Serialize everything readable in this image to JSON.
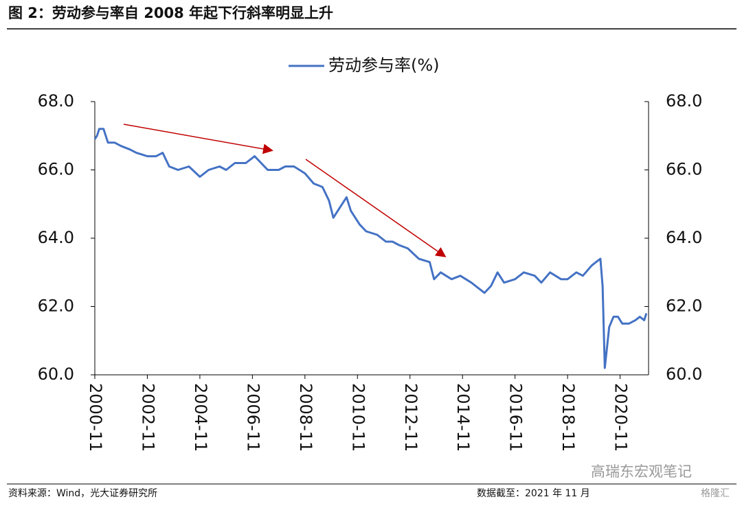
{
  "header": {
    "title": "图 2：劳动参与率自 2008 年起下行斜率明显上升"
  },
  "chart_data": {
    "type": "line",
    "x": [
      "2000-11",
      "2000-12",
      "2001-01",
      "2001-03",
      "2001-05",
      "2001-08",
      "2001-11",
      "2002-03",
      "2002-06",
      "2002-11",
      "2003-03",
      "2003-06",
      "2003-09",
      "2004-01",
      "2004-06",
      "2004-11",
      "2005-03",
      "2005-08",
      "2005-11",
      "2006-03",
      "2006-08",
      "2006-12",
      "2007-03",
      "2007-06",
      "2007-11",
      "2008-02",
      "2008-06",
      "2008-11",
      "2009-03",
      "2009-07",
      "2009-10",
      "2009-12",
      "2010-03",
      "2010-06",
      "2010-08",
      "2010-12",
      "2011-03",
      "2011-08",
      "2011-12",
      "2012-03",
      "2012-06",
      "2012-10",
      "2013-03",
      "2013-08",
      "2013-10",
      "2014-01",
      "2014-06",
      "2014-10",
      "2015-03",
      "2015-09",
      "2015-12",
      "2016-03",
      "2016-06",
      "2016-11",
      "2017-03",
      "2017-08",
      "2017-11",
      "2018-03",
      "2018-08",
      "2018-11",
      "2019-03",
      "2019-06",
      "2019-10",
      "2019-12",
      "2020-02",
      "2020-03",
      "2020-04",
      "2020-06",
      "2020-08",
      "2020-10",
      "2020-12",
      "2021-03",
      "2021-06",
      "2021-08",
      "2021-10",
      "2021-11"
    ],
    "series": [
      {
        "name": "劳动参与率(%)",
        "color": "#4472c4",
        "values": [
          66.9,
          67.0,
          67.2,
          67.2,
          66.8,
          66.8,
          66.7,
          66.6,
          66.5,
          66.4,
          66.4,
          66.5,
          66.1,
          66.0,
          66.1,
          65.8,
          66.0,
          66.1,
          66.0,
          66.2,
          66.2,
          66.4,
          66.2,
          66.0,
          66.0,
          66.1,
          66.1,
          65.9,
          65.6,
          65.5,
          65.1,
          64.6,
          64.9,
          65.2,
          64.8,
          64.4,
          64.2,
          64.1,
          63.9,
          63.9,
          63.8,
          63.7,
          63.4,
          63.3,
          62.8,
          63.0,
          62.8,
          62.9,
          62.7,
          62.4,
          62.6,
          63.0,
          62.7,
          62.8,
          63.0,
          62.9,
          62.7,
          63.0,
          62.8,
          62.8,
          63.0,
          62.9,
          63.2,
          63.3,
          63.4,
          62.6,
          60.2,
          61.4,
          61.7,
          61.7,
          61.5,
          61.5,
          61.6,
          61.7,
          61.6,
          61.8
        ]
      }
    ],
    "xlim": [
      "2000-11",
      "2021-12"
    ],
    "xticks": [
      "2000-11",
      "2002-11",
      "2004-11",
      "2006-11",
      "2008-11",
      "2010-11",
      "2012-11",
      "2014-11",
      "2016-11",
      "2018-11",
      "2020-11"
    ],
    "ylim": [
      60,
      68
    ],
    "yticks": [
      {
        "value": 60,
        "label": "60.0"
      },
      {
        "value": 62,
        "label": "62.0"
      },
      {
        "value": 64,
        "label": "64.0"
      },
      {
        "value": 66,
        "label": "66.0"
      },
      {
        "value": 68,
        "label": "68.0"
      }
    ],
    "y2lim": [
      60,
      68
    ],
    "y2ticks": [
      {
        "value": 60,
        "label": "60.0"
      },
      {
        "value": 62,
        "label": "62.0"
      },
      {
        "value": 64,
        "label": "64.0"
      },
      {
        "value": 66,
        "label": "66.0"
      },
      {
        "value": 68,
        "label": "68.0"
      }
    ],
    "legend": "top"
  },
  "footer": {
    "source": "资料来源：Wind，光大证券研究所",
    "date": "数据截至：2021 年 11 月",
    "watermark": "高瑞东宏观笔记",
    "watermark2": "格隆汇"
  }
}
